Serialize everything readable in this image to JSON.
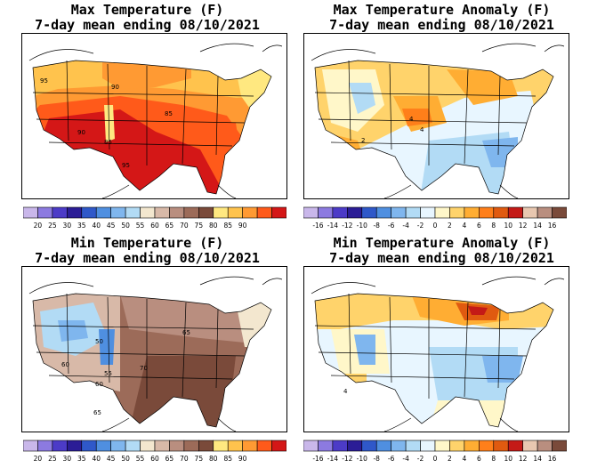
{
  "panels": [
    {
      "id": "max-temp",
      "title_line1": "Max Temperature (F)",
      "title_line2": "7-day mean ending 08/10/2021",
      "colorbar": {
        "colors": [
          "#c9b7ea",
          "#8c7ae0",
          "#4c3bc7",
          "#2b1d96",
          "#2f58c9",
          "#4f8fe0",
          "#7fb6ee",
          "#b2dbf5",
          "#f3e7cf",
          "#d8b9a8",
          "#b98e7f",
          "#9c6b59",
          "#7a4a3a",
          "#ffe880",
          "#ffc34d",
          "#ff9a33",
          "#ff5a1a",
          "#d41717"
        ],
        "labels": [
          "20",
          "25",
          "30",
          "35",
          "40",
          "45",
          "50",
          "55",
          "60",
          "65",
          "70",
          "75",
          "80",
          "85",
          "90"
        ]
      },
      "contour_labels": [
        "95",
        "90",
        "85",
        "90",
        "85",
        "95"
      ]
    },
    {
      "id": "max-anom",
      "title_line1": "Max Temperature Anomaly (F)",
      "title_line2": "7-day mean ending 08/10/2021",
      "colorbar": {
        "colors": [
          "#c9b7ea",
          "#8c7ae0",
          "#4c3bc7",
          "#2b1d96",
          "#2f58c9",
          "#4f8fe0",
          "#7fb6ee",
          "#b2dbf5",
          "#e8f6ff",
          "#fff7c9",
          "#ffd36b",
          "#ffad33",
          "#ff7f1a",
          "#e05a10",
          "#c41a17",
          "#e8c7b0",
          "#b98e7f",
          "#7a4a3a"
        ],
        "labels": [
          "-16",
          "-14",
          "-12",
          "-10",
          "-8",
          "-6",
          "-4",
          "-2",
          "0",
          "2",
          "4",
          "6",
          "8",
          "10",
          "12",
          "14",
          "16"
        ]
      },
      "contour_labels": [
        "4",
        "2",
        "4"
      ]
    },
    {
      "id": "min-temp",
      "title_line1": "Min Temperature (F)",
      "title_line2": "7-day mean ending 08/10/2021",
      "colorbar": {
        "colors": [
          "#c9b7ea",
          "#8c7ae0",
          "#4c3bc7",
          "#2b1d96",
          "#2f58c9",
          "#4f8fe0",
          "#7fb6ee",
          "#b2dbf5",
          "#f3e7cf",
          "#d8b9a8",
          "#b98e7f",
          "#9c6b59",
          "#7a4a3a",
          "#ffe880",
          "#ffc34d",
          "#ff9a33",
          "#ff5a1a",
          "#d41717"
        ],
        "labels": [
          "20",
          "25",
          "30",
          "35",
          "40",
          "45",
          "50",
          "55",
          "60",
          "65",
          "70",
          "75",
          "80",
          "85",
          "90"
        ]
      },
      "contour_labels": [
        "65",
        "50",
        "55",
        "60",
        "65",
        "70",
        "60"
      ]
    },
    {
      "id": "min-anom",
      "title_line1": "Min Temperature Anomaly (F)",
      "title_line2": "7-day mean ending 08/10/2021",
      "colorbar": {
        "colors": [
          "#c9b7ea",
          "#8c7ae0",
          "#4c3bc7",
          "#2b1d96",
          "#2f58c9",
          "#4f8fe0",
          "#7fb6ee",
          "#b2dbf5",
          "#e8f6ff",
          "#fff7c9",
          "#ffd36b",
          "#ffad33",
          "#ff7f1a",
          "#e05a10",
          "#c41a17",
          "#e8c7b0",
          "#b98e7f",
          "#7a4a3a"
        ],
        "labels": [
          "-16",
          "-14",
          "-12",
          "-10",
          "-8",
          "-6",
          "-4",
          "-2",
          "0",
          "2",
          "4",
          "6",
          "8",
          "10",
          "12",
          "14",
          "16"
        ]
      },
      "contour_labels": [
        "4"
      ]
    }
  ]
}
